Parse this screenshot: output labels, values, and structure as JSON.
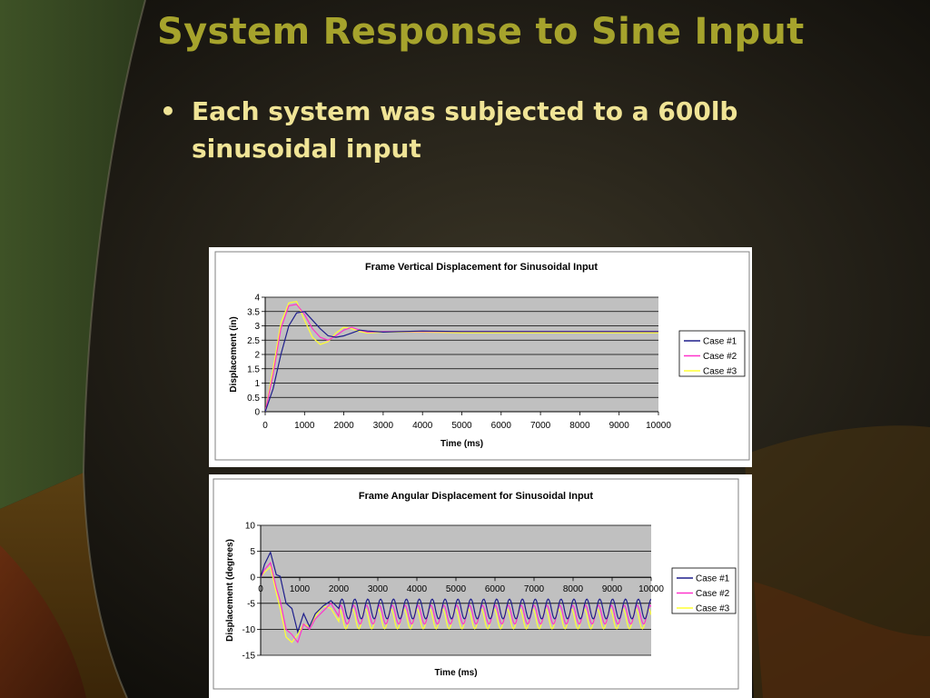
{
  "slide": {
    "title": "System Response to Sine Input",
    "bullet": "Each system was subjected to a 600lb sinusoidal input"
  },
  "colors": {
    "title": "#a6a32c",
    "bullet": "#f0e496",
    "plot_area": "#c0c0c0",
    "case1": "#1f1f8c",
    "case2": "#ff33cc",
    "case3": "#ffff33"
  },
  "chart_data": [
    {
      "type": "line",
      "title": "Frame Vertical Displacement for Sinusoidal Input",
      "xlabel": "Time (ms)",
      "ylabel": "Displacement (in)",
      "xlim": [
        0,
        10000
      ],
      "ylim": [
        0,
        4
      ],
      "x_ticks": [
        0,
        1000,
        2000,
        3000,
        4000,
        5000,
        6000,
        7000,
        8000,
        9000,
        10000
      ],
      "y_ticks": [
        0,
        0.5,
        1,
        1.5,
        2,
        2.5,
        3,
        3.5,
        4
      ],
      "grid": true,
      "legend": "right",
      "series": [
        {
          "name": "Case #1",
          "color": "#1f1f8c",
          "x": [
            0,
            200,
            400,
            600,
            800,
            1000,
            1200,
            1400,
            1600,
            1800,
            2000,
            2200,
            2400,
            2600,
            3000,
            4000,
            5000,
            6000,
            7000,
            8000,
            9000,
            10000
          ],
          "y": [
            0,
            0.8,
            2.0,
            3.0,
            3.45,
            3.5,
            3.2,
            2.9,
            2.65,
            2.6,
            2.65,
            2.75,
            2.85,
            2.82,
            2.78,
            2.82,
            2.8,
            2.8,
            2.8,
            2.8,
            2.8,
            2.8
          ]
        },
        {
          "name": "Case #2",
          "color": "#ff33cc",
          "x": [
            0,
            200,
            400,
            600,
            800,
            1000,
            1200,
            1400,
            1600,
            1800,
            2000,
            2200,
            2400,
            2600,
            3000,
            4000,
            5000,
            6000,
            7000,
            8000,
            9000,
            10000
          ],
          "y": [
            0,
            1.3,
            2.9,
            3.7,
            3.75,
            3.4,
            2.9,
            2.6,
            2.5,
            2.65,
            2.85,
            2.95,
            2.85,
            2.78,
            2.8,
            2.8,
            2.8,
            2.8,
            2.8,
            2.8,
            2.8,
            2.8
          ]
        },
        {
          "name": "Case #3",
          "color": "#ffff33",
          "x": [
            0,
            200,
            400,
            600,
            800,
            1000,
            1200,
            1400,
            1600,
            1800,
            2000,
            2200,
            2400,
            2600,
            3000,
            4000,
            5000,
            6000,
            7000,
            8000,
            9000,
            10000
          ],
          "y": [
            0,
            1.5,
            3.1,
            3.8,
            3.85,
            3.2,
            2.6,
            2.35,
            2.45,
            2.75,
            2.95,
            2.9,
            2.8,
            2.75,
            2.78,
            2.78,
            2.76,
            2.76,
            2.76,
            2.76,
            2.76,
            2.76
          ]
        }
      ]
    },
    {
      "type": "line",
      "title": "Frame Angular Displacement for Sinusoidal Input",
      "xlabel": "Time (ms)",
      "ylabel": "Displacement (degrees)",
      "xlim": [
        0,
        10000
      ],
      "ylim": [
        -15,
        10
      ],
      "x_ticks": [
        0,
        1000,
        2000,
        3000,
        4000,
        5000,
        6000,
        7000,
        8000,
        9000,
        10000
      ],
      "y_ticks": [
        -15,
        -10,
        -5,
        0,
        5,
        10
      ],
      "grid": true,
      "legend": "right",
      "oscillation_period_ms": 330,
      "series": [
        {
          "name": "Case #1",
          "color": "#1f1f8c",
          "x": [
            0,
            100,
            250,
            400,
            500,
            650,
            800,
            950,
            1100,
            1250,
            1400,
            1600,
            1800,
            2000
          ],
          "y": [
            0,
            2.5,
            4.8,
            0.5,
            0.2,
            -5,
            -6,
            -10.5,
            -7,
            -9.5,
            -7,
            -5.5,
            -4.5,
            -6
          ],
          "steady_center": -6.1,
          "steady_amplitude": 1.9
        },
        {
          "name": "Case #2",
          "color": "#ff33cc",
          "x": [
            0,
            100,
            250,
            400,
            500,
            650,
            800,
            950,
            1100,
            1250,
            1400,
            1600,
            1800,
            2000
          ],
          "y": [
            0,
            1.5,
            2.8,
            -2,
            -4.5,
            -10,
            -11,
            -12.5,
            -9,
            -10,
            -8,
            -6.5,
            -5,
            -7.5
          ],
          "steady_center": -7.2,
          "steady_amplitude": 1.8
        },
        {
          "name": "Case #3",
          "color": "#ffff33",
          "x": [
            0,
            100,
            250,
            400,
            500,
            650,
            800,
            950,
            1100,
            1250,
            1400,
            1600,
            1800,
            2000
          ],
          "y": [
            0,
            1,
            2,
            -3,
            -6,
            -11.5,
            -12.5,
            -11,
            -9,
            -9.5,
            -7.5,
            -5.5,
            -6,
            -8.5
          ],
          "steady_center": -8.0,
          "steady_amplitude": 1.9
        }
      ]
    }
  ]
}
